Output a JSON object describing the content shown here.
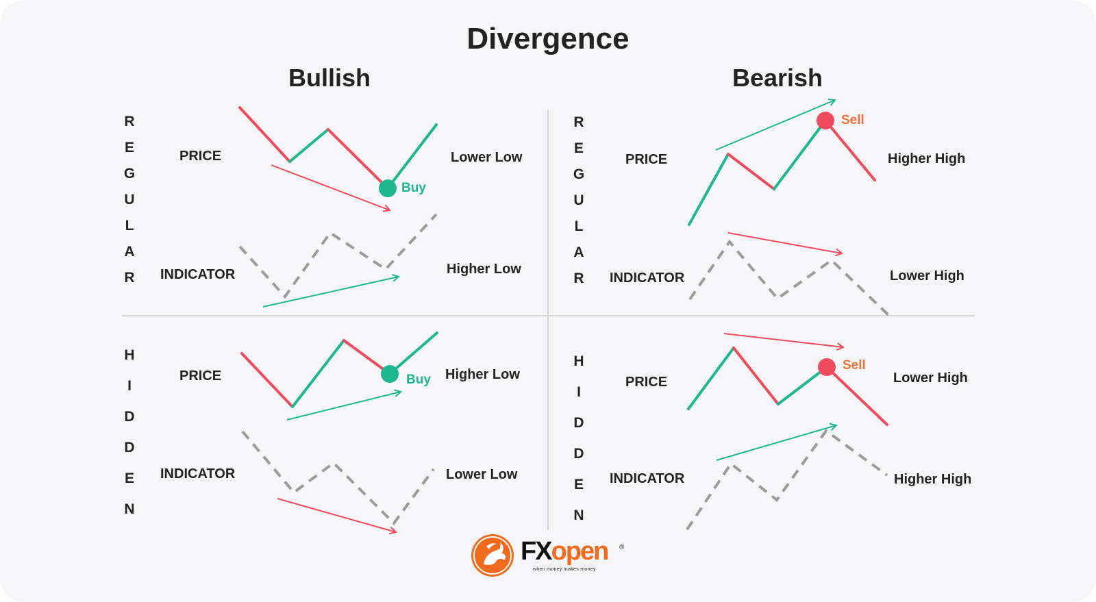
{
  "title": "Divergence",
  "columns": {
    "bullish": "Bullish",
    "bearish": "Bearish"
  },
  "rows": {
    "regular": [
      "R",
      "E",
      "G",
      "U",
      "L",
      "A",
      "R"
    ],
    "hidden": [
      "H",
      "I",
      "D",
      "D",
      "E",
      "N"
    ]
  },
  "labels": {
    "price": "PRICE",
    "indicator": "INDICATOR"
  },
  "panels": {
    "regular_bullish": {
      "price_desc": "Lower Low",
      "indicator_desc": "Higher Low",
      "signal": "Buy"
    },
    "regular_bearish": {
      "price_desc": "Higher High",
      "indicator_desc": "Lower High",
      "signal": "Sell"
    },
    "hidden_bullish": {
      "price_desc": "Higher Low",
      "indicator_desc": "Lower Low",
      "signal": "Buy"
    },
    "hidden_bearish": {
      "price_desc": "Lower High",
      "indicator_desc": "Higher High",
      "signal": "Sell"
    }
  },
  "logo": {
    "fx": "FX",
    "open": "open",
    "tagline": "when money makes money",
    "reg": "®",
    "icon": "dragon-logo-icon"
  },
  "colors": {
    "green": "#1db890",
    "red": "#ef4a5e",
    "gray": "#9b9b9b",
    "sell": "#f07239",
    "orange": "#f26a1b",
    "text": "#232323"
  }
}
